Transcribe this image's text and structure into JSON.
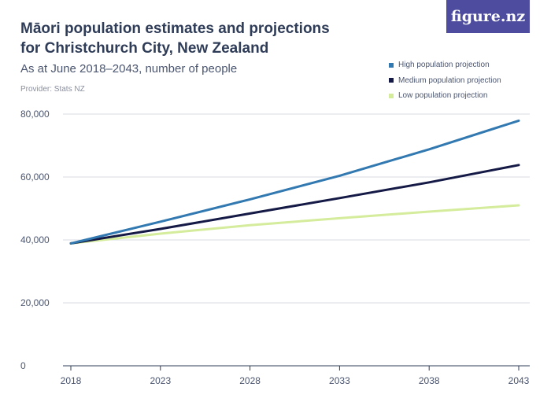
{
  "header": {
    "title": "Māori population estimates and projections for Christchurch City, New Zealand",
    "subtitle": "As at June 2018–2043, number of people",
    "provider": "Provider: Stats NZ",
    "logo_text": "figure.nz"
  },
  "colors": {
    "high": "#3179b0",
    "medium": "#141a45",
    "low": "#d4ec9c",
    "logo_bg": "#4d4c9f"
  },
  "chart_data": {
    "type": "line",
    "title": "Māori population estimates and projections for Christchurch City, New Zealand",
    "subtitle": "As at June 2018–2043, number of people",
    "x": [
      2018,
      2023,
      2028,
      2033,
      2038,
      2043
    ],
    "x_tick_labels": [
      "2018",
      "2023",
      "2028",
      "2033",
      "2038",
      "2043"
    ],
    "y_tick_labels": [
      "0",
      "20,000",
      "40,000",
      "60,000",
      "80,000"
    ],
    "y_ticks": [
      0,
      20000,
      40000,
      60000,
      80000
    ],
    "ylim": [
      0,
      80000
    ],
    "xlim": [
      2018,
      2043
    ],
    "xlabel": "",
    "ylabel": "",
    "grid": true,
    "legend_position": "top-right",
    "series": [
      {
        "key": "high",
        "name": "High population projection",
        "values": [
          38900,
          45800,
          52900,
          60400,
          68800,
          77900
        ]
      },
      {
        "key": "medium",
        "name": "Medium population projection",
        "values": [
          38900,
          43500,
          48400,
          53300,
          58300,
          63800
        ]
      },
      {
        "key": "low",
        "name": "Low population projection",
        "values": [
          38900,
          42000,
          44700,
          46900,
          49000,
          51000
        ]
      }
    ]
  }
}
